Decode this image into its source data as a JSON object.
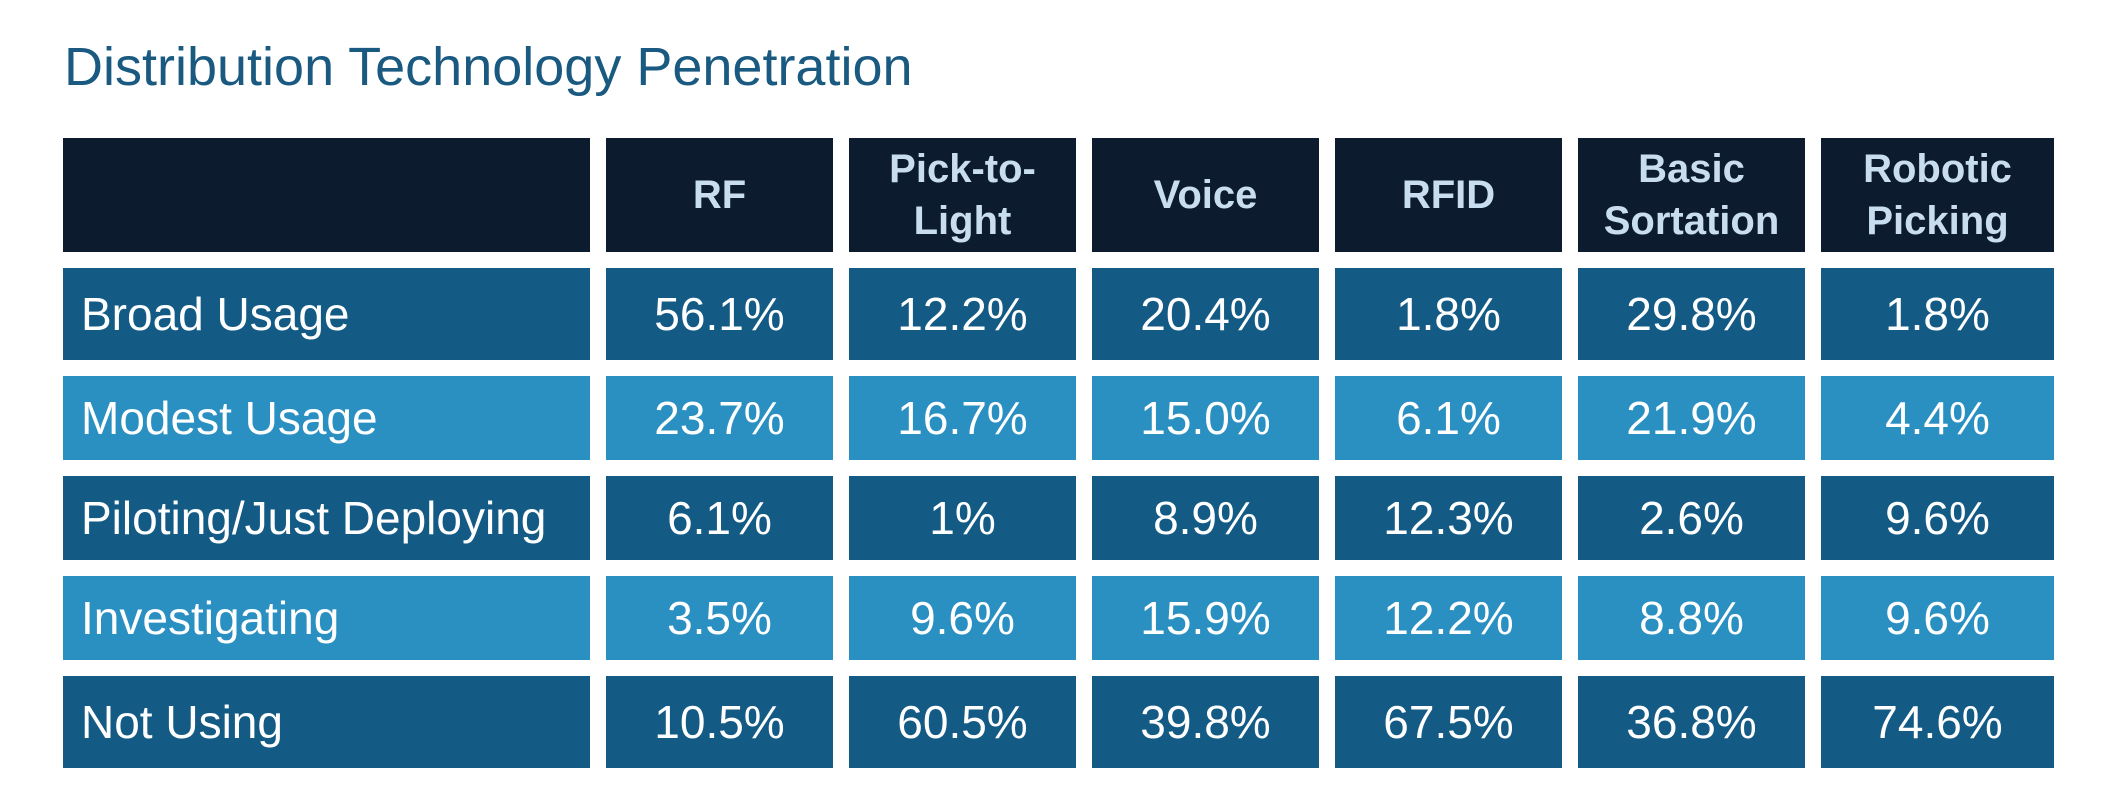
{
  "chart_data": {
    "type": "table",
    "title": "Distribution Technology Penetration",
    "columns": [
      "",
      "RF",
      "Pick-to-Light",
      "Voice",
      "RFID",
      "Basic Sortation",
      "Robotic Picking"
    ],
    "rows": [
      {
        "label": "Broad Usage",
        "values": [
          "56.1%",
          "12.2%",
          "20.4%",
          "1.8%",
          "29.8%",
          "1.8%"
        ],
        "shade": "dark"
      },
      {
        "label": "Modest Usage",
        "values": [
          "23.7%",
          "16.7%",
          "15.0%",
          "6.1%",
          "21.9%",
          "4.4%"
        ],
        "shade": "light"
      },
      {
        "label": "Piloting/Just Deploying",
        "values": [
          "6.1%",
          "1%",
          "8.9%",
          "12.3%",
          "2.6%",
          "9.6%"
        ],
        "shade": "dark"
      },
      {
        "label": "Investigating",
        "values": [
          "3.5%",
          "9.6%",
          "15.9%",
          "12.2%",
          "8.8%",
          "9.6%"
        ],
        "shade": "light"
      },
      {
        "label": "Not Using",
        "values": [
          "10.5%",
          "60.5%",
          "39.8%",
          "67.5%",
          "36.8%",
          "74.6%"
        ],
        "shade": "dark"
      }
    ],
    "colors": {
      "header_bg": "#0c1b2e",
      "header_text": "#c8def0",
      "row_dark": "#135a85",
      "row_light": "#2a8fc1",
      "title": "#1a5a80"
    }
  }
}
